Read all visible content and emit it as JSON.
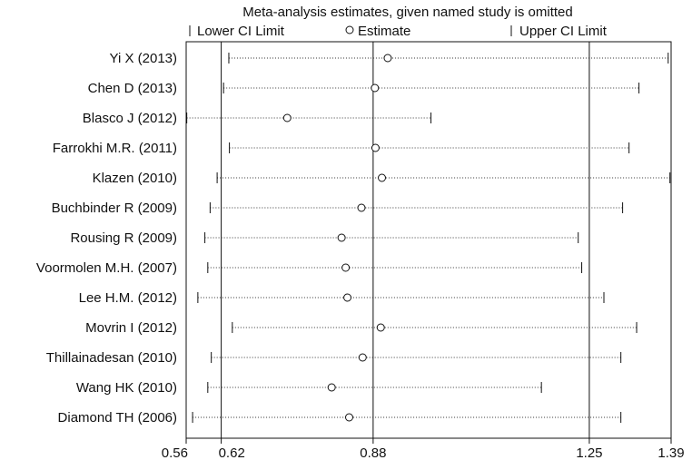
{
  "chart_data": {
    "type": "scatter",
    "title": "Meta-analysis estimates, given named study is omitted",
    "legend": {
      "lower": "Lower CI Limit",
      "estimate": "Estimate",
      "upper": "Upper CI Limit",
      "placement": "top"
    },
    "xticks": [
      0.56,
      0.62,
      0.88,
      1.25,
      1.39
    ],
    "xtick_labels": [
      "0.56",
      "0.62",
      "0.88",
      "1.25",
      "1.39"
    ],
    "xlim": [
      0.56,
      1.39
    ],
    "reference_lines": [
      0.62,
      0.88,
      1.25
    ],
    "grid": false,
    "studies": [
      {
        "name": "Yi X (2013)",
        "lower": 0.633,
        "estimate": 0.905,
        "upper": 1.385
      },
      {
        "name": "Chen D (2013)",
        "lower": 0.624,
        "estimate": 0.883,
        "upper": 1.335
      },
      {
        "name": "Blasco J (2012)",
        "lower": 0.561,
        "estimate": 0.733,
        "upper": 0.979
      },
      {
        "name": "Farrokhi M.R. (2011)",
        "lower": 0.634,
        "estimate": 0.884,
        "upper": 1.318
      },
      {
        "name": "Klazen (2010)",
        "lower": 0.613,
        "estimate": 0.895,
        "upper": 1.388
      },
      {
        "name": "Buchbinder R (2009)",
        "lower": 0.601,
        "estimate": 0.86,
        "upper": 1.307
      },
      {
        "name": "Rousing R (2009)",
        "lower": 0.592,
        "estimate": 0.826,
        "upper": 1.231
      },
      {
        "name": "Voormolen M.H. (2007)",
        "lower": 0.597,
        "estimate": 0.833,
        "upper": 1.237
      },
      {
        "name": "Lee H.M. (2012)",
        "lower": 0.58,
        "estimate": 0.836,
        "upper": 1.275
      },
      {
        "name": "Movrin I (2012)",
        "lower": 0.639,
        "estimate": 0.893,
        "upper": 1.331
      },
      {
        "name": "Thillainadesan (2010)",
        "lower": 0.603,
        "estimate": 0.862,
        "upper": 1.304
      },
      {
        "name": "Wang HK (2010)",
        "lower": 0.597,
        "estimate": 0.809,
        "upper": 1.168
      },
      {
        "name": "Diamond TH (2006)",
        "lower": 0.571,
        "estimate": 0.839,
        "upper": 1.304
      }
    ]
  }
}
